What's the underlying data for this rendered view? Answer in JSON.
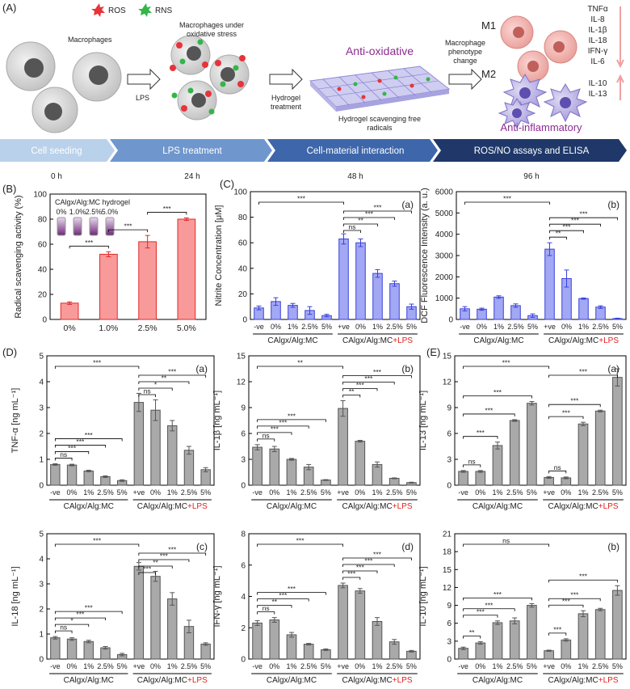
{
  "schematic": {
    "label": "(A)",
    "legend": [
      "ROS",
      "RNS"
    ],
    "macrophages": "Macrophages",
    "stress": [
      "Macrophages under",
      "oxidative stress"
    ],
    "lps": "LPS",
    "hydrogel_step": [
      "Hydrogel",
      "treatment"
    ],
    "anti_oxidative": "Anti-oxidative",
    "scavenging": [
      "Hydrogel scavenging free",
      "radicals"
    ],
    "phenotype": [
      "Macrophage",
      "phenotype",
      "change"
    ],
    "m1": "M1",
    "m2": "M2",
    "m1_cytokines": [
      "TNFα",
      "IL-8",
      "IL-1β",
      "IL-18",
      "IFN-γ",
      "IL-6"
    ],
    "m2_cytokines": [
      "IL-10",
      "IL-13"
    ],
    "anti_inflammatory": "Anti-inflammatory",
    "timeline": [
      {
        "step": "Cell seeding",
        "time": "0 h"
      },
      {
        "step": "LPS treatment",
        "time": "24 h"
      },
      {
        "step": "Cell-material interaction",
        "time": "48 h"
      },
      {
        "step": "ROS/NO assays and ELISA",
        "time": "96 h"
      }
    ]
  },
  "panel_labels": [
    "(B)",
    "(C)",
    "(D)",
    "(E)"
  ],
  "chart_data": [
    {
      "type": "bar",
      "ylabel": "Radical scavenging activity (%)",
      "categories": [
        "0%",
        "1.0%",
        "2.5%",
        "5.0%"
      ],
      "values": [
        13,
        52,
        62,
        80
      ],
      "errors": [
        1,
        2,
        5,
        1
      ],
      "ylim": [
        0,
        100
      ],
      "yticks": [
        0,
        20,
        40,
        60,
        80,
        100
      ],
      "color": "#f99a9a",
      "edge": "#e02a2a",
      "inset_title": "CAlgx/Alg:MC hydrogel",
      "inset_labels": [
        "0%",
        "1.0%",
        "2.5%",
        "5.0%"
      ],
      "brackets": [
        {
          "from": 0,
          "to": 1,
          "label": "***"
        },
        {
          "from": 1,
          "to": 2,
          "label": "***"
        },
        {
          "from": 2,
          "to": 3,
          "label": "***"
        }
      ]
    },
    {
      "type": "bar",
      "label": "(a)",
      "ylabel": "Nitrite Concentration [μM]",
      "categories": [
        "-ve",
        "0%",
        "1%",
        "2.5%",
        "5%",
        "+ve",
        "0%",
        "1%",
        "2.5%",
        "5%"
      ],
      "values": [
        9,
        14,
        11,
        7,
        3,
        63,
        60,
        36,
        28,
        10
      ],
      "errors": [
        1.5,
        3,
        1.5,
        3,
        1,
        4,
        3,
        3,
        2,
        2
      ],
      "ylim": [
        0,
        100
      ],
      "yticks": [
        0,
        20,
        40,
        60,
        80,
        100
      ],
      "color": "#a3a8f5",
      "edge": "#3a42d8",
      "groups": [
        {
          "label": "CAlgx/Alg:MC"
        },
        {
          "label": "CAlgx/Alg:MC",
          "suffix": "+LPS"
        }
      ],
      "brackets": [
        {
          "from": 0,
          "to": 5,
          "label": "***"
        },
        {
          "from": 5,
          "to": 6,
          "label": "ns"
        },
        {
          "from": 5,
          "to": 7,
          "label": "**"
        },
        {
          "from": 5,
          "to": 8,
          "label": "***"
        },
        {
          "from": 5,
          "to": 9,
          "label": "***"
        }
      ]
    },
    {
      "type": "bar",
      "label": "(b)",
      "ylabel": "DCF Fluorescence Intensity (a. u.)",
      "categories": [
        "-ve",
        "0%",
        "1%",
        "2.5%",
        "5%",
        "+ve",
        "0%",
        "1%",
        "2.5%",
        "5%"
      ],
      "values": [
        500,
        480,
        1050,
        650,
        180,
        3300,
        1920,
        980,
        580,
        40
      ],
      "errors": [
        100,
        50,
        60,
        80,
        80,
        300,
        400,
        30,
        60,
        20
      ],
      "ylim": [
        0,
        6000
      ],
      "yticks": [
        0,
        1000,
        2000,
        3000,
        4000,
        5000,
        6000
      ],
      "color": "#a3a8f5",
      "edge": "#3a42d8",
      "groups": [
        {
          "label": "CAlgx/Alg:MC"
        },
        {
          "label": "CAlgx/Alg:MC",
          "suffix": "+LPS"
        }
      ],
      "brackets": [
        {
          "from": 0,
          "to": 5,
          "label": "***"
        },
        {
          "from": 5,
          "to": 6,
          "label": "**"
        },
        {
          "from": 5,
          "to": 7,
          "label": "***"
        },
        {
          "from": 5,
          "to": 8,
          "label": "***"
        },
        {
          "from": 5,
          "to": 9,
          "label": "***"
        }
      ]
    },
    {
      "type": "bar",
      "label": "(a)",
      "ylabel": "TNF-α [ng mL⁻¹]",
      "categories": [
        "-ve",
        "0%",
        "1%",
        "2.5%",
        "5%",
        "+ve",
        "0%",
        "1%",
        "2.5%",
        "5%"
      ],
      "values": [
        0.8,
        0.78,
        0.55,
        0.33,
        0.18,
        3.2,
        2.9,
        2.3,
        1.35,
        0.6
      ],
      "errors": [
        0.03,
        0.03,
        0.03,
        0.03,
        0.03,
        0.35,
        0.4,
        0.2,
        0.15,
        0.08
      ],
      "ylim": [
        0,
        5
      ],
      "yticks": [
        0,
        1,
        2,
        3,
        4,
        5
      ],
      "color": "#a9a9a9",
      "edge": "#555555",
      "groups": [
        {
          "label": "CAlgx/Alg:MC"
        },
        {
          "label": "CAlgx/Alg:MC",
          "suffix": "+LPS"
        }
      ],
      "brackets": [
        {
          "from": 0,
          "to": 5,
          "label": "***"
        },
        {
          "from": 0,
          "to": 1,
          "label": "ns"
        },
        {
          "from": 0,
          "to": 2,
          "label": "***"
        },
        {
          "from": 0,
          "to": 3,
          "label": "***"
        },
        {
          "from": 0,
          "to": 4,
          "label": "***"
        },
        {
          "from": 5,
          "to": 6,
          "label": "ns"
        },
        {
          "from": 5,
          "to": 7,
          "label": "*"
        },
        {
          "from": 5,
          "to": 8,
          "label": "**"
        },
        {
          "from": 5,
          "to": 9,
          "label": "***"
        }
      ]
    },
    {
      "type": "bar",
      "label": "(b)",
      "ylabel": "IL-1β [ng mL⁻¹]",
      "categories": [
        "-ve",
        "0%",
        "1%",
        "2.5%",
        "5%",
        "+ve",
        "0%",
        "1%",
        "2.5%",
        "5%"
      ],
      "values": [
        4.4,
        4.2,
        3.0,
        2.1,
        0.6,
        8.9,
        5.1,
        2.4,
        0.8,
        0.3
      ],
      "errors": [
        0.3,
        0.3,
        0.1,
        0.3,
        0.05,
        0.9,
        0.1,
        0.3,
        0.05,
        0.05
      ],
      "ylim": [
        0,
        15
      ],
      "yticks": [
        0,
        3,
        6,
        9,
        12,
        15
      ],
      "color": "#a9a9a9",
      "edge": "#555555",
      "groups": [
        {
          "label": "CAlgx/Alg:MC"
        },
        {
          "label": "CAlgx/Alg:MC",
          "suffix": "+LPS"
        }
      ],
      "brackets": [
        {
          "from": 0,
          "to": 5,
          "label": "**"
        },
        {
          "from": 0,
          "to": 1,
          "label": "ns"
        },
        {
          "from": 0,
          "to": 2,
          "label": "***"
        },
        {
          "from": 0,
          "to": 3,
          "label": "***"
        },
        {
          "from": 0,
          "to": 4,
          "label": "***"
        },
        {
          "from": 5,
          "to": 6,
          "label": "**"
        },
        {
          "from": 5,
          "to": 7,
          "label": "***"
        },
        {
          "from": 5,
          "to": 8,
          "label": "***"
        },
        {
          "from": 5,
          "to": 9,
          "label": "***"
        }
      ]
    },
    {
      "type": "bar",
      "label": "(a)",
      "ylabel": "IL-13 [ng mL⁻¹]",
      "categories": [
        "-ve",
        "0%",
        "1%",
        "2.5%",
        "5%",
        "+ve",
        "0%",
        "1%",
        "2.5%",
        "5%"
      ],
      "values": [
        1.6,
        1.6,
        4.6,
        7.5,
        9.5,
        0.9,
        0.85,
        7.1,
        8.6,
        12.5
      ],
      "errors": [
        0.1,
        0.1,
        0.4,
        0.1,
        0.2,
        0.1,
        0.1,
        0.2,
        0.1,
        1
      ],
      "ylim": [
        0,
        15
      ],
      "yticks": [
        0,
        3,
        6,
        9,
        12,
        15
      ],
      "color": "#a9a9a9",
      "edge": "#555555",
      "groups": [
        {
          "label": "CAlgx/Alg:MC"
        },
        {
          "label": "CAlgx/Alg:MC",
          "suffix": "+LPS"
        }
      ],
      "brackets": [
        {
          "from": 0,
          "to": 5,
          "label": "***"
        },
        {
          "from": 0,
          "to": 1,
          "label": "ns"
        },
        {
          "from": 0,
          "to": 2,
          "label": "***"
        },
        {
          "from": 0,
          "to": 3,
          "label": "***"
        },
        {
          "from": 0,
          "to": 4,
          "label": "***"
        },
        {
          "from": 5,
          "to": 6,
          "label": "ns"
        },
        {
          "from": 5,
          "to": 7,
          "label": "***"
        },
        {
          "from": 5,
          "to": 8,
          "label": "***"
        },
        {
          "from": 5,
          "to": 9,
          "label": "***"
        }
      ]
    },
    {
      "type": "bar",
      "label": "(c)",
      "ylabel": "IL-18 [ng mL⁻¹]",
      "categories": [
        "-ve",
        "0%",
        "1%",
        "2.5%",
        "5%",
        "+ve",
        "0%",
        "1%",
        "2.5%",
        "5%"
      ],
      "values": [
        0.85,
        0.8,
        0.7,
        0.45,
        0.18,
        3.7,
        3.3,
        2.4,
        1.3,
        0.6
      ],
      "errors": [
        0.05,
        0.05,
        0.05,
        0.05,
        0.05,
        0.15,
        0.2,
        0.25,
        0.25,
        0.05
      ],
      "ylim": [
        0,
        5
      ],
      "yticks": [
        0,
        1,
        2,
        3,
        4,
        5
      ],
      "color": "#a9a9a9",
      "edge": "#555555",
      "groups": [
        {
          "label": "CAlgx/Alg:MC"
        },
        {
          "label": "CAlgx/Alg:MC",
          "suffix": "+LPS"
        }
      ],
      "brackets": [
        {
          "from": 0,
          "to": 5,
          "label": "***"
        },
        {
          "from": 0,
          "to": 1,
          "label": "ns"
        },
        {
          "from": 0,
          "to": 2,
          "label": "*"
        },
        {
          "from": 0,
          "to": 3,
          "label": "***"
        },
        {
          "from": 0,
          "to": 4,
          "label": "***"
        },
        {
          "from": 5,
          "to": 6,
          "label": "***"
        },
        {
          "from": 5,
          "to": 7,
          "label": "**"
        },
        {
          "from": 5,
          "to": 8,
          "label": "***"
        },
        {
          "from": 5,
          "to": 9,
          "label": "***"
        }
      ]
    },
    {
      "type": "bar",
      "label": "(d)",
      "ylabel": "IFN-γ [ng mL⁻¹]",
      "categories": [
        "-ve",
        "0%",
        "1%",
        "2.5%",
        "5%",
        "+ve",
        "0%",
        "1%",
        "2.5%",
        "5%"
      ],
      "values": [
        2.3,
        2.5,
        1.55,
        0.95,
        0.6,
        4.7,
        4.35,
        2.4,
        1.1,
        0.5
      ],
      "errors": [
        0.15,
        0.15,
        0.15,
        0.05,
        0.05,
        0.15,
        0.15,
        0.25,
        0.15,
        0.05
      ],
      "ylim": [
        0,
        8
      ],
      "yticks": [
        0,
        2,
        4,
        6,
        8
      ],
      "color": "#a9a9a9",
      "edge": "#555555",
      "groups": [
        {
          "label": "CAlgx/Alg:MC"
        },
        {
          "label": "CAlgx/Alg:MC",
          "suffix": "+LPS"
        }
      ],
      "brackets": [
        {
          "from": 0,
          "to": 5,
          "label": "***"
        },
        {
          "from": 0,
          "to": 1,
          "label": "ns"
        },
        {
          "from": 0,
          "to": 2,
          "label": "**"
        },
        {
          "from": 0,
          "to": 3,
          "label": "***"
        },
        {
          "from": 0,
          "to": 4,
          "label": "***"
        },
        {
          "from": 5,
          "to": 6,
          "label": "***"
        },
        {
          "from": 5,
          "to": 7,
          "label": "***"
        },
        {
          "from": 5,
          "to": 8,
          "label": "***"
        },
        {
          "from": 5,
          "to": 9,
          "label": "***"
        }
      ]
    },
    {
      "type": "bar",
      "label": "(b)",
      "ylabel": "IL-10 [ng mL⁻¹]",
      "categories": [
        "-ve",
        "0%",
        "1%",
        "2.5%",
        "5%",
        "+ve",
        "0%",
        "1%",
        "2.5%",
        "5%"
      ],
      "values": [
        1.8,
        2.7,
        6.1,
        6.4,
        9.0,
        1.4,
        3.2,
        7.6,
        8.3,
        11.5
      ],
      "errors": [
        0.2,
        0.2,
        0.3,
        0.5,
        0.3,
        0.1,
        0.2,
        0.5,
        0.2,
        0.8
      ],
      "ylim": [
        0,
        21
      ],
      "yticks": [
        0,
        3,
        6,
        9,
        12,
        15,
        18,
        21
      ],
      "color": "#a9a9a9",
      "edge": "#555555",
      "groups": [
        {
          "label": "CAlgx/Alg:MC"
        },
        {
          "label": "CAlgx/Alg:MC",
          "suffix": "+LPS"
        }
      ],
      "brackets": [
        {
          "from": 0,
          "to": 5,
          "label": "ns"
        },
        {
          "from": 0,
          "to": 1,
          "label": "**"
        },
        {
          "from": 0,
          "to": 2,
          "label": "***"
        },
        {
          "from": 0,
          "to": 3,
          "label": "***"
        },
        {
          "from": 0,
          "to": 4,
          "label": "***"
        },
        {
          "from": 5,
          "to": 6,
          "label": "***"
        },
        {
          "from": 5,
          "to": 7,
          "label": "***"
        },
        {
          "from": 5,
          "to": 8,
          "label": "***"
        },
        {
          "from": 5,
          "to": 9,
          "label": "***"
        }
      ]
    }
  ]
}
